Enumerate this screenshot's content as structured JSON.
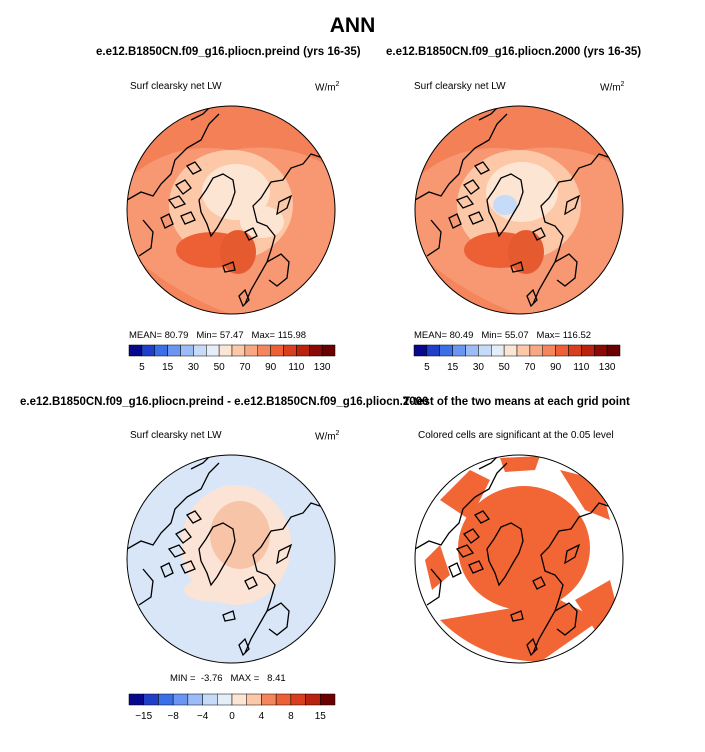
{
  "title": "ANN",
  "colors": {
    "coast": "#000000",
    "sig": "#f26535",
    "bg": "#ffffff"
  },
  "panels": [
    {
      "id": "preind",
      "title": "e.e12.B1850CN.f09_g16.pliocn.preind (yrs 16-35)",
      "variable": "Surf clearsky net LW",
      "units": "W/m",
      "units_exp": "2",
      "stats": {
        "mean_label": "MEAN=",
        "mean": "80.79",
        "min_label": "Min=",
        "min": "57.47",
        "max_label": "Max=",
        "max": "115.98"
      }
    },
    {
      "id": "2000",
      "title": "e.e12.B1850CN.f09_g16.pliocn.2000 (yrs 16-35)",
      "variable": "Surf clearsky net LW",
      "units": "W/m",
      "units_exp": "2",
      "stats": {
        "mean_label": "MEAN=",
        "mean": "80.49",
        "min_label": "Min=",
        "min": "55.07",
        "max_label": "Max=",
        "max": "116.52"
      }
    },
    {
      "id": "diff",
      "title": "e.e12.B1850CN.f09_g16.pliocn.preind - e.e12.B1850CN.f09_g16.pliocn.2000",
      "variable": "Surf clearsky net LW",
      "units": "W/m",
      "units_exp": "2",
      "stats": {
        "min_label": "MIN =",
        "min": "-3.76",
        "max_label": "MAX =",
        "max": "8.41"
      }
    },
    {
      "id": "ttest",
      "title": "T-test of the two means at each grid point",
      "subtitle": "Colored cells are significant at the 0.05 level"
    }
  ],
  "chart_data": [
    {
      "type": "heatmap",
      "projection": "north polar stereographic",
      "title": "e.e12.B1850CN.f09_g16.pliocn.preind (yrs 16-35)",
      "variable": "Surf clearsky net LW",
      "units": "W/m^2",
      "mean": 80.79,
      "min": 57.47,
      "max": 115.98,
      "colorbar_levels": [
        5,
        10,
        15,
        20,
        30,
        40,
        50,
        60,
        70,
        80,
        90,
        100,
        110,
        120,
        130
      ],
      "colorbar_labels": [
        "5",
        "15",
        "30",
        "50",
        "70",
        "90",
        "110",
        "130"
      ],
      "colorbar_colors": [
        "#08088c",
        "#1f3fc9",
        "#3a6fe8",
        "#6a95f2",
        "#9cbcf7",
        "#c6dbf7",
        "#e4eef9",
        "#fde5d3",
        "#fcc8a8",
        "#f9a682",
        "#f5855c",
        "#ed6036",
        "#d93e1f",
        "#b8220f",
        "#8b0a05",
        "#6b0000"
      ]
    },
    {
      "type": "heatmap",
      "projection": "north polar stereographic",
      "title": "e.e12.B1850CN.f09_g16.pliocn.2000 (yrs 16-35)",
      "variable": "Surf clearsky net LW",
      "units": "W/m^2",
      "mean": 80.49,
      "min": 55.07,
      "max": 116.52,
      "colorbar_levels": [
        5,
        10,
        15,
        20,
        30,
        40,
        50,
        60,
        70,
        80,
        90,
        100,
        110,
        120,
        130
      ],
      "colorbar_labels": [
        "5",
        "15",
        "30",
        "50",
        "70",
        "90",
        "110",
        "130"
      ],
      "colorbar_colors": [
        "#08088c",
        "#1f3fc9",
        "#3a6fe8",
        "#6a95f2",
        "#9cbcf7",
        "#c6dbf7",
        "#e4eef9",
        "#fde5d3",
        "#fcc8a8",
        "#f9a682",
        "#f5855c",
        "#ed6036",
        "#d93e1f",
        "#b8220f",
        "#8b0a05",
        "#6b0000"
      ]
    },
    {
      "type": "heatmap",
      "projection": "north polar stereographic",
      "title": "e.e12.B1850CN.f09_g16.pliocn.preind - e.e12.B1850CN.f09_g16.pliocn.2000",
      "variable": "Surf clearsky net LW",
      "units": "W/m^2",
      "min": -3.76,
      "max": 8.41,
      "colorbar_levels": [
        -15,
        -12,
        -8,
        -6,
        -4,
        -2,
        0,
        2,
        4,
        6,
        8,
        12,
        15
      ],
      "colorbar_labels": [
        "-15",
        "-8",
        "-4",
        "0",
        "4",
        "8",
        "15"
      ],
      "colorbar_colors": [
        "#08088c",
        "#1f3fc9",
        "#3a6fe8",
        "#6a95f2",
        "#9cbcf7",
        "#c6dbf7",
        "#e4eef9",
        "#fde5d3",
        "#fcc8a8",
        "#f5855c",
        "#ed6036",
        "#d93e1f",
        "#b8220f",
        "#6b0000"
      ]
    },
    {
      "type": "heatmap",
      "projection": "north polar stereographic",
      "title": "T-test of the two means at each grid point",
      "subtitle": "Colored cells are significant at the 0.05 level",
      "significance_level": 0.05
    }
  ]
}
